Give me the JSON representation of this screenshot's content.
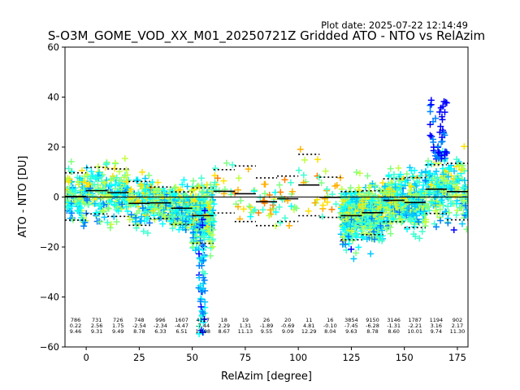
{
  "plot_date": "Plot date: 2025-07-22 12:14:49",
  "chart_data": {
    "type": "scatter",
    "title": "S-O3M_GOME_VOD_XX_M01_20250721Z Gridded ATO - NTO vs RelAzim",
    "xlabel": "RelAzim [degree]",
    "ylabel": "ATO - NTO [DU]",
    "xlim": [
      -10,
      180
    ],
    "ylim": [
      -60,
      60
    ],
    "xticks": [
      0,
      25,
      50,
      75,
      100,
      125,
      150,
      175
    ],
    "yticks": [
      -60,
      -40,
      -20,
      0,
      20,
      40,
      60
    ],
    "grid": false,
    "zero_line": 0,
    "point_colors": [
      "#0000ff",
      "#0080ff",
      "#00c8ff",
      "#00ffff",
      "#40ffd0",
      "#80ff80",
      "#c0ff40",
      "#ffe000",
      "#ffb000",
      "#ff8000"
    ],
    "bins": [
      {
        "x": -5,
        "count": "786",
        "mean": "0.22",
        "std": "9.46"
      },
      {
        "x": 5,
        "count": "731",
        "mean": "2.56",
        "std": "9.31"
      },
      {
        "x": 15,
        "count": "726",
        "mean": "1.75",
        "std": "9.49"
      },
      {
        "x": 25,
        "count": "748",
        "mean": "-2.54",
        "std": "8.78"
      },
      {
        "x": 35,
        "count": "996",
        "mean": "-2.34",
        "std": "6.33"
      },
      {
        "x": 45,
        "count": "1607",
        "mean": "-4.47",
        "std": "6.51"
      },
      {
        "x": 55,
        "count": "4127",
        "mean": "-7.44",
        "std": "11.08"
      },
      {
        "x": 65,
        "count": "18",
        "mean": "2.29",
        "std": "8.67"
      },
      {
        "x": 75,
        "count": "19",
        "mean": "1.31",
        "std": "11.13"
      },
      {
        "x": 85,
        "count": "26",
        "mean": "-1.89",
        "std": "9.55"
      },
      {
        "x": 95,
        "count": "20",
        "mean": "-0.69",
        "std": "9.09"
      },
      {
        "x": 105,
        "count": "11",
        "mean": "4.81",
        "std": "12.29"
      },
      {
        "x": 115,
        "count": "16",
        "mean": "-0.10",
        "std": "8.04"
      },
      {
        "x": 125,
        "count": "3854",
        "mean": "-7.45",
        "std": "9.63"
      },
      {
        "x": 135,
        "count": "9150",
        "mean": "-6.28",
        "std": "8.78"
      },
      {
        "x": 145,
        "count": "3146",
        "mean": "-1.31",
        "std": "8.60"
      },
      {
        "x": 155,
        "count": "1787",
        "mean": "-2.21",
        "std": "10.01"
      },
      {
        "x": 165,
        "count": "1194",
        "mean": "3.16",
        "std": "9.74"
      },
      {
        "x": 175,
        "count": "902",
        "mean": "2.17",
        "std": "11.30"
      }
    ]
  }
}
